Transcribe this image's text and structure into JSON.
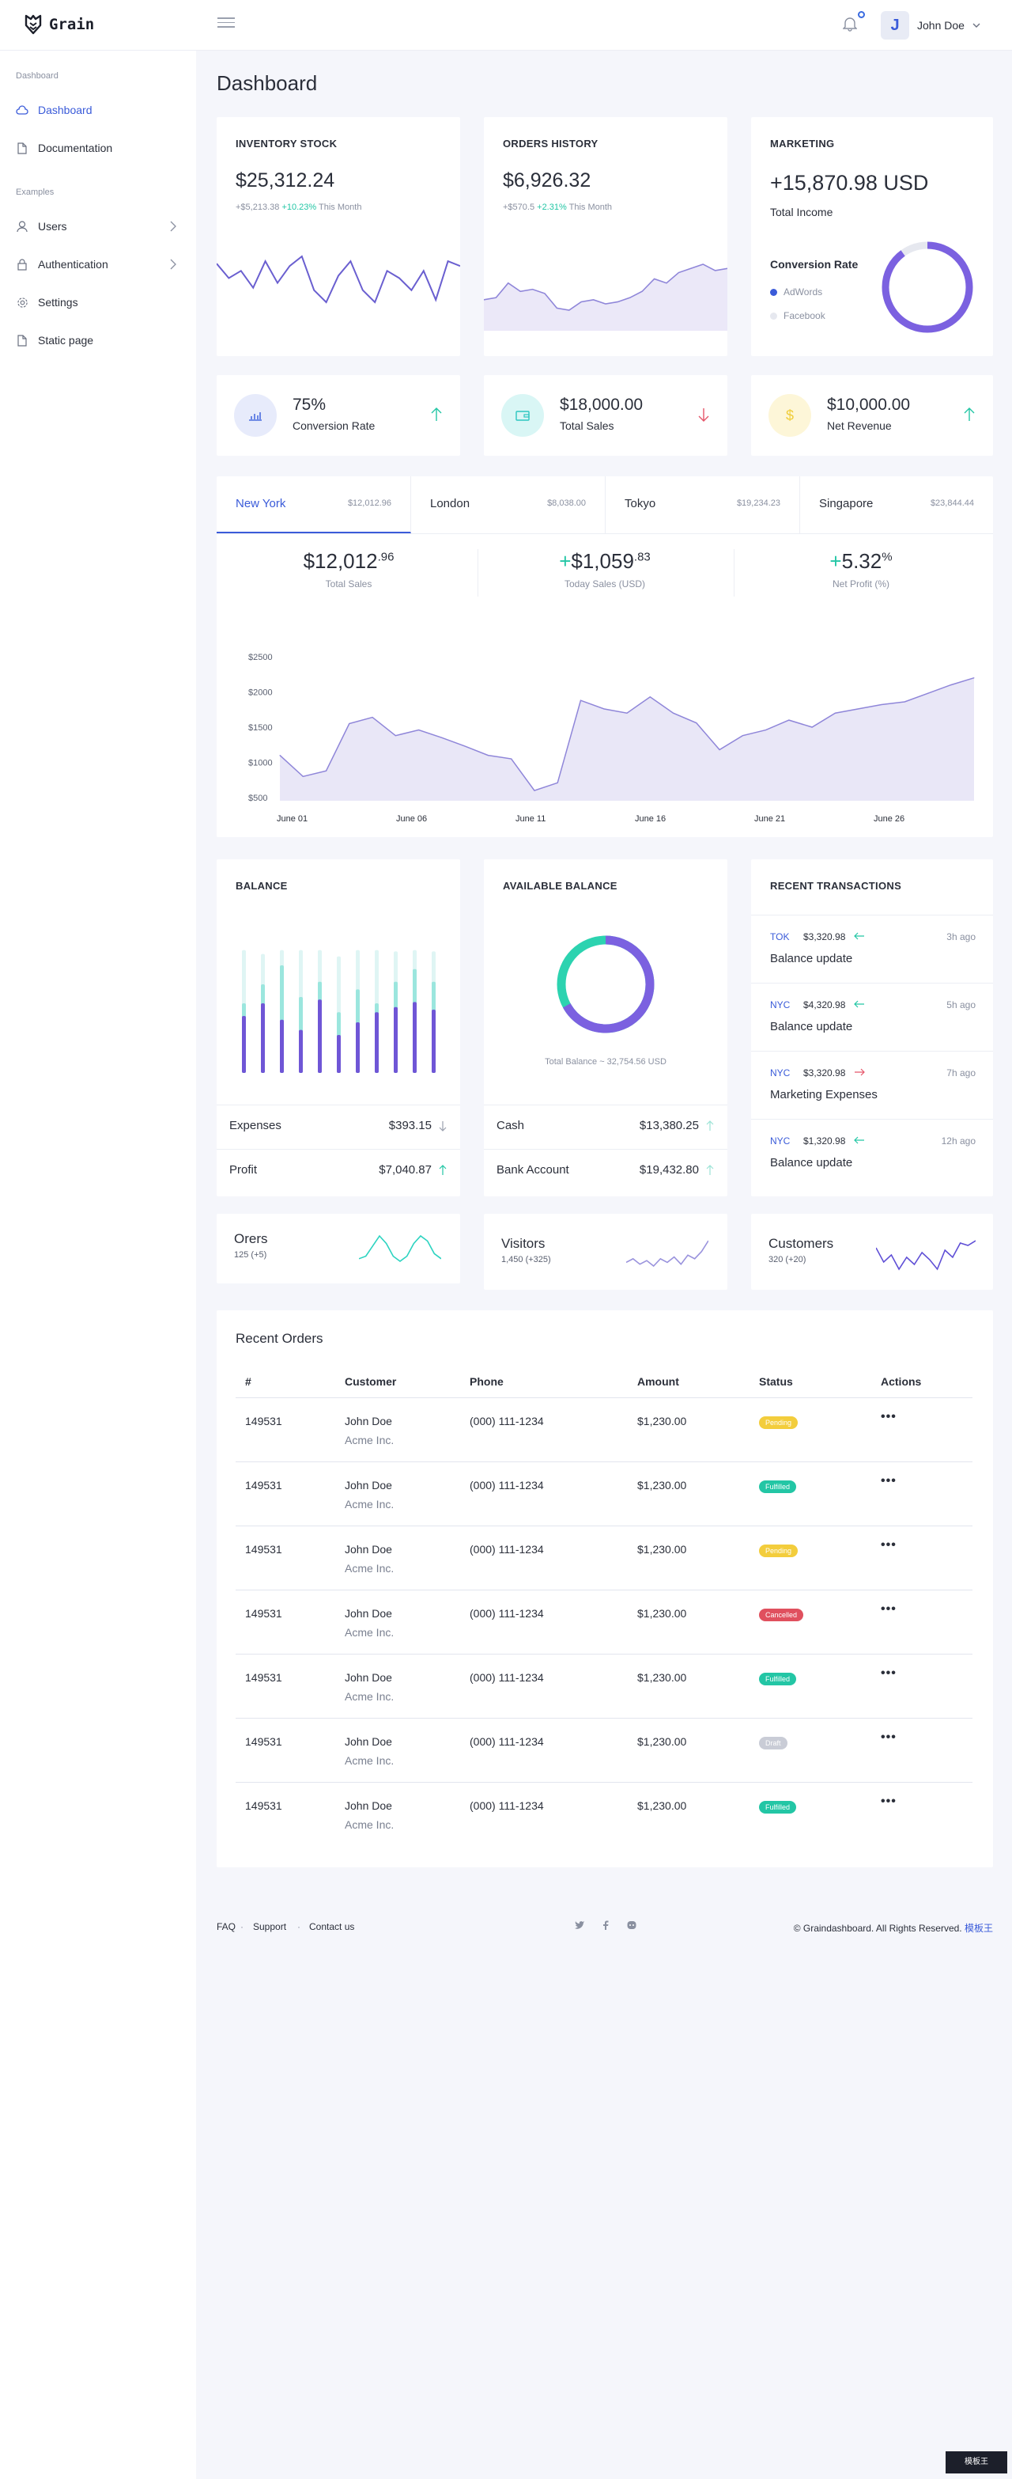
{
  "app": {
    "name": "Grain"
  },
  "header": {
    "user_initial": "J",
    "user_name": "John Doe"
  },
  "sidebar": {
    "section_dashboard": "Dashboard",
    "section_examples": "Examples",
    "items": [
      {
        "label": "Dashboard",
        "icon": "cloud-icon"
      },
      {
        "label": "Documentation",
        "icon": "file-icon"
      },
      {
        "label": "Users",
        "icon": "user-icon"
      },
      {
        "label": "Authentication",
        "icon": "lock-icon"
      },
      {
        "label": "Settings",
        "icon": "gear-icon"
      },
      {
        "label": "Static page",
        "icon": "file-icon"
      }
    ]
  },
  "page": {
    "title": "Dashboard"
  },
  "inventory": {
    "label": "INVENTORY STOCK",
    "value": "$25,312.24",
    "delta": "+$5,213.38",
    "pct": "+10.23%",
    "period": "This Month",
    "spark": [
      42,
      30,
      36,
      22,
      44,
      26,
      40,
      48,
      20,
      10,
      32,
      44,
      20,
      10,
      36,
      30,
      20,
      36,
      12,
      44,
      40
    ]
  },
  "orders_history": {
    "label": "ORDERS HISTORY",
    "value": "$6,926.32",
    "delta": "+$570.5",
    "pct": "+2.31%",
    "period": "This Month",
    "spark": [
      14,
      16,
      30,
      22,
      24,
      20,
      6,
      4,
      12,
      14,
      10,
      12,
      16,
      22,
      34,
      30,
      40,
      44,
      48,
      42,
      44
    ]
  },
  "marketing": {
    "label": "MARKETING",
    "value": "+15,870.98 USD",
    "sub": "Total Income",
    "conv_title": "Conversion Rate",
    "legend": [
      "AdWords",
      "Facebook"
    ],
    "adwords_share": 0.9,
    "colors": {
      "adwords": "#3a5bd9",
      "facebook": "#e6e8ef",
      "ring": "#7b61e0"
    }
  },
  "stats": [
    {
      "value": "75%",
      "label": "Conversion Rate",
      "icon": "bar-chart-icon",
      "trend": "up",
      "bg": "#e7ebfb",
      "fg": "#4a6ce0"
    },
    {
      "value": "$18,000.00",
      "label": "Total Sales",
      "icon": "wallet-icon",
      "trend": "down",
      "bg": "#d9f6f5",
      "fg": "#2cc6c0"
    },
    {
      "value": "$10,000.00",
      "label": "Net Revenue",
      "icon": "dollar-icon",
      "trend": "up",
      "bg": "#fdf6d8",
      "fg": "#f0cd3a"
    }
  ],
  "cities": [
    {
      "name": "New York",
      "value": "$12,012.96"
    },
    {
      "name": "London",
      "value": "$8,038.00"
    },
    {
      "name": "Tokyo",
      "value": "$19,234.23"
    },
    {
      "name": "Singapore",
      "value": "$23,844.44"
    }
  ],
  "kpis": [
    {
      "main": "$12,012",
      "sup": ".96",
      "prefix": "",
      "label": "Total Sales"
    },
    {
      "main": "$1,059",
      "sup": ".83",
      "prefix": "+",
      "label": "Today Sales (USD)"
    },
    {
      "main": "5.32",
      "sup": "%",
      "prefix": "+",
      "label": "Net Profit (%)"
    }
  ],
  "chart_data": {
    "type": "area",
    "x_labels": [
      "June 01",
      "June 06",
      "June 11",
      "June 16",
      "June 21",
      "June 26"
    ],
    "y_ticks": [
      "$2500",
      "$2000",
      "$1500",
      "$1000",
      "$500"
    ],
    "ylim": [
      500,
      2500
    ],
    "values": [
      1100,
      800,
      880,
      1550,
      1640,
      1380,
      1460,
      1350,
      1230,
      1100,
      1050,
      600,
      710,
      1880,
      1760,
      1700,
      1930,
      1700,
      1560,
      1180,
      1380,
      1460,
      1600,
      1500,
      1700,
      1760,
      1820,
      1860,
      1980,
      2100,
      2200
    ],
    "colors": {
      "line": "#8f86d9",
      "fill": "#e9e7f7"
    }
  },
  "balance": {
    "label": "BALANCE",
    "bars": [
      {
        "total": 0.97,
        "teal": 0.55,
        "purple": 0.45
      },
      {
        "total": 0.94,
        "teal": 0.7,
        "purple": 0.55
      },
      {
        "total": 0.97,
        "teal": 0.85,
        "purple": 0.42
      },
      {
        "total": 0.97,
        "teal": 0.6,
        "purple": 0.34
      },
      {
        "total": 0.97,
        "teal": 0.72,
        "purple": 0.58
      },
      {
        "total": 0.92,
        "teal": 0.48,
        "purple": 0.3
      },
      {
        "total": 0.97,
        "teal": 0.66,
        "purple": 0.4
      },
      {
        "total": 0.97,
        "teal": 0.55,
        "purple": 0.48
      },
      {
        "total": 0.96,
        "teal": 0.72,
        "purple": 0.52
      },
      {
        "total": 0.97,
        "teal": 0.82,
        "purple": 0.56
      },
      {
        "total": 0.96,
        "teal": 0.72,
        "purple": 0.5
      }
    ],
    "rows": [
      {
        "label": "Expenses",
        "value": "$393.15",
        "trend": "down"
      },
      {
        "label": "Profit",
        "value": "$7,040.87",
        "trend": "up"
      }
    ]
  },
  "available": {
    "label": "AVAILABLE BALANCE",
    "caption": "Total Balance ~ 32,754.56 USD",
    "teal_share": 0.33,
    "rows": [
      {
        "label": "Cash",
        "value": "$13,380.25",
        "trend": "up"
      },
      {
        "label": "Bank Account",
        "value": "$19,432.80",
        "trend": "up"
      }
    ]
  },
  "transactions": {
    "label": "RECENT TRANSACTIONS",
    "items": [
      {
        "city": "TOK",
        "amount": "$3,320.98",
        "dir": "in",
        "time": "3h ago",
        "desc": "Balance update"
      },
      {
        "city": "NYC",
        "amount": "$4,320.98",
        "dir": "in",
        "time": "5h ago",
        "desc": "Balance update"
      },
      {
        "city": "NYC",
        "amount": "$3,320.98",
        "dir": "out",
        "time": "7h ago",
        "desc": "Marketing Expenses"
      },
      {
        "city": "NYC",
        "amount": "$1,320.98",
        "dir": "in",
        "time": "12h ago",
        "desc": "Balance update"
      }
    ]
  },
  "minis": [
    {
      "title": "Orers",
      "sub": "125 (+5)",
      "color": "#2cd3c0",
      "spark": [
        10,
        12,
        20,
        28,
        22,
        12,
        8,
        12,
        22,
        28,
        24,
        14,
        10
      ]
    },
    {
      "title": "Visitors",
      "sub": "1,450 (+325)",
      "color": "#9a93dd",
      "spark": [
        10,
        12,
        9,
        11,
        8,
        12,
        10,
        13,
        9,
        14,
        12,
        16,
        22
      ]
    },
    {
      "title": "Customers",
      "sub": "320 (+20)",
      "color": "#5f4fd6",
      "spark": [
        24,
        12,
        18,
        6,
        16,
        10,
        20,
        14,
        6,
        22,
        16,
        28,
        26,
        30
      ]
    }
  ],
  "orders": {
    "title": "Recent Orders",
    "columns": [
      "#",
      "Customer",
      "Phone",
      "Amount",
      "Status",
      "Actions"
    ],
    "rows": [
      {
        "id": "149531",
        "customer": "John Doe",
        "company": "Acme Inc.",
        "phone": "(000) 111-1234",
        "amount": "$1,230.00",
        "status": "Pending",
        "color": "#f3cd3c"
      },
      {
        "id": "149531",
        "customer": "John Doe",
        "company": "Acme Inc.",
        "phone": "(000) 111-1234",
        "amount": "$1,230.00",
        "status": "Fulfilled",
        "color": "#23c6a5"
      },
      {
        "id": "149531",
        "customer": "John Doe",
        "company": "Acme Inc.",
        "phone": "(000) 111-1234",
        "amount": "$1,230.00",
        "status": "Pending",
        "color": "#f3cd3c"
      },
      {
        "id": "149531",
        "customer": "John Doe",
        "company": "Acme Inc.",
        "phone": "(000) 111-1234",
        "amount": "$1,230.00",
        "status": "Cancelled",
        "color": "#e0505e"
      },
      {
        "id": "149531",
        "customer": "John Doe",
        "company": "Acme Inc.",
        "phone": "(000) 111-1234",
        "amount": "$1,230.00",
        "status": "Fulfilled",
        "color": "#23c6a5"
      },
      {
        "id": "149531",
        "customer": "John Doe",
        "company": "Acme Inc.",
        "phone": "(000) 111-1234",
        "amount": "$1,230.00",
        "status": "Draft",
        "color": "#c9ccd6"
      },
      {
        "id": "149531",
        "customer": "John Doe",
        "company": "Acme Inc.",
        "phone": "(000) 111-1234",
        "amount": "$1,230.00",
        "status": "Fulfilled",
        "color": "#23c6a5"
      }
    ],
    "actions_glyph": "•••"
  },
  "footer": {
    "links": [
      "FAQ",
      "Support",
      "Contact us"
    ],
    "separator": "·",
    "socials": [
      "twitter-icon",
      "facebook-icon",
      "github-icon"
    ],
    "copyright": "© Graindashboard. All Rights Reserved.",
    "brand": "模板王"
  },
  "watermark": "模板王"
}
